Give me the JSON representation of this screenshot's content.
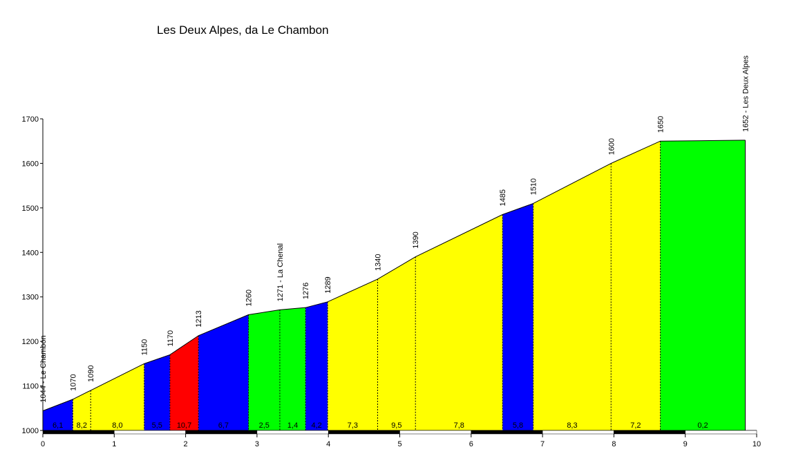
{
  "chart_data": {
    "type": "area",
    "title": "Les Deux Alpes, da Le Chambon",
    "xlabel": "",
    "ylabel": "",
    "xlim": [
      0,
      10
    ],
    "ylim": [
      1000,
      1700
    ],
    "x_ticks": [
      "0",
      "1",
      "2",
      "3",
      "4",
      "5",
      "6",
      "7",
      "8",
      "9",
      "10"
    ],
    "y_ticks": [
      "1000",
      "1100",
      "1200",
      "1300",
      "1400",
      "1500",
      "1600",
      "1700"
    ],
    "profile": [
      {
        "km": 0.0,
        "elev": 1044,
        "label": "1044 - Le Chambon"
      },
      {
        "km": 0.42,
        "elev": 1070,
        "label": "1070"
      },
      {
        "km": 0.67,
        "elev": 1090,
        "label": "1090"
      },
      {
        "km": 1.42,
        "elev": 1150,
        "label": "1150"
      },
      {
        "km": 1.78,
        "elev": 1170,
        "label": "1170"
      },
      {
        "km": 2.18,
        "elev": 1213,
        "label": "1213"
      },
      {
        "km": 2.88,
        "elev": 1260,
        "label": "1260"
      },
      {
        "km": 3.32,
        "elev": 1271,
        "label": "1271 - La Chenal"
      },
      {
        "km": 3.68,
        "elev": 1276,
        "label": "1276"
      },
      {
        "km": 3.99,
        "elev": 1289,
        "label": "1289"
      },
      {
        "km": 4.69,
        "elev": 1340,
        "label": "1340"
      },
      {
        "km": 5.22,
        "elev": 1390,
        "label": "1390"
      },
      {
        "km": 6.44,
        "elev": 1485,
        "label": "1485"
      },
      {
        "km": 6.87,
        "elev": 1510,
        "label": "1510"
      },
      {
        "km": 7.96,
        "elev": 1600,
        "label": "1600"
      },
      {
        "km": 8.65,
        "elev": 1650,
        "label": "1650"
      },
      {
        "km": 9.84,
        "elev": 1652,
        "label": "1652 - Les Deux Alpes"
      }
    ],
    "segments": [
      {
        "gradient": "6,1",
        "color": "#0000ff"
      },
      {
        "gradient": "8,2",
        "color": "#ffff00"
      },
      {
        "gradient": "8,0",
        "color": "#ffff00"
      },
      {
        "gradient": "5,5",
        "color": "#0000ff"
      },
      {
        "gradient": "10,7",
        "color": "#ff0000"
      },
      {
        "gradient": "6,7",
        "color": "#0000ff"
      },
      {
        "gradient": "2,5",
        "color": "#00ff00"
      },
      {
        "gradient": "1,4",
        "color": "#00ff00"
      },
      {
        "gradient": "4,2",
        "color": "#0000ff"
      },
      {
        "gradient": "7,3",
        "color": "#ffff00"
      },
      {
        "gradient": "9,5",
        "color": "#ffff00"
      },
      {
        "gradient": "7,8",
        "color": "#ffff00"
      },
      {
        "gradient": "5,8",
        "color": "#0000ff"
      },
      {
        "gradient": "8,3",
        "color": "#ffff00"
      },
      {
        "gradient": "7,2",
        "color": "#ffff00"
      },
      {
        "gradient": "0,2",
        "color": "#00ff00"
      }
    ],
    "grid": false
  }
}
